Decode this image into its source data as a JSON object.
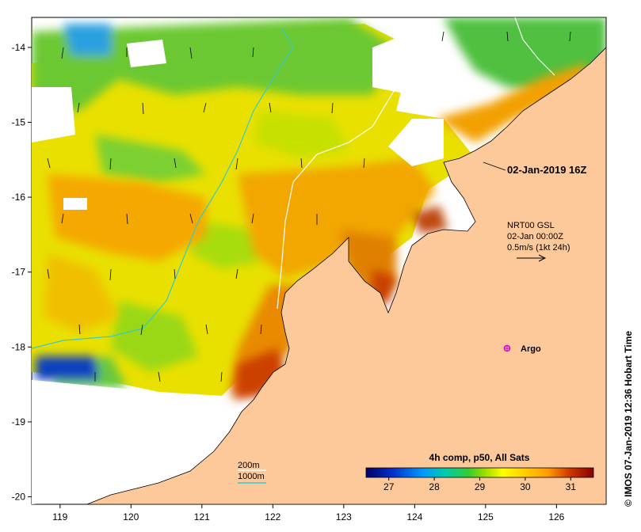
{
  "map": {
    "timestamp_label": "02-Jan-2019 16Z",
    "current": {
      "line1": "NRT00 GSL",
      "line2": "02-Jan 00:00Z",
      "line3": "0.5m/s (1kt 24h)"
    },
    "argo_label": "Argo",
    "credit": "© IMOS 07-Jan-2019 12:36 Hobart Time",
    "contours": {
      "c200": "200m",
      "c1000": "1000m"
    },
    "colorbar": {
      "title": "4h comp, p50, All Sats",
      "ticks": [
        "27",
        "28",
        "29",
        "30",
        "31"
      ],
      "range": [
        26.5,
        31.5
      ],
      "colors": [
        "#000066",
        "#0033cc",
        "#0099ff",
        "#00ccaa",
        "#33cc33",
        "#99dd00",
        "#ffff00",
        "#ffcc00",
        "#ff9900",
        "#ee6600",
        "#cc3300",
        "#880000"
      ]
    },
    "x_axis": {
      "ticks": [
        "119",
        "120",
        "121",
        "122",
        "123",
        "124",
        "125",
        "126"
      ],
      "range": [
        118.6,
        126.7
      ]
    },
    "y_axis": {
      "ticks": [
        "-14",
        "-15",
        "-16",
        "-17",
        "-18",
        "-19",
        "-20"
      ],
      "range": [
        -13.6,
        -20.1
      ]
    },
    "colors": {
      "land": "#fdc89a",
      "contour_200": "#ffffff",
      "contour_1000": "#33cccc",
      "argo": "#cc00cc"
    }
  }
}
